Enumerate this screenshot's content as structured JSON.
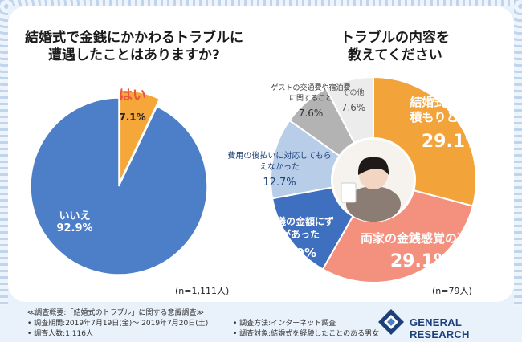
{
  "left": {
    "title_line1": "結婚式で金銭にかかわるトラブルに",
    "title_line2": "遭遇したことはありますか?",
    "n_label": "(n=1,111人)"
  },
  "right": {
    "title_line1": "トラブルの内容を",
    "title_line2": "教えてください",
    "n_label": "(n=79人)"
  },
  "chart_data": [
    {
      "type": "pie",
      "title": "結婚式で金銭にかかわるトラブルに遭遇したことはありますか?",
      "labels": [
        "はい",
        "いいえ"
      ],
      "values": [
        7.1,
        92.9
      ],
      "value_labels": [
        "7.1%",
        "92.9%"
      ],
      "colors": [
        "#f5a73a",
        "#4d7fc8"
      ],
      "n": "(n=1,111人)"
    },
    {
      "type": "pie",
      "style": "donut",
      "title": "トラブルの内容を教えてください",
      "labels": [
        "結婚式費用が見積もりと違った",
        "両家の金銭感覚の違い",
        "ご祝儀の金額にずれがあった",
        "費用の後払いに対応してもらえなかった",
        "ゲストの交通費や宿泊費に関すること",
        "その他"
      ],
      "values": [
        29.1,
        29.1,
        13.9,
        12.7,
        7.6,
        7.6
      ],
      "value_labels": [
        "29.1%",
        "29.1%",
        "13.9%",
        "12.7%",
        "7.6%",
        "7.6%"
      ],
      "colors": [
        "#f2a33a",
        "#f4907e",
        "#3f6fbf",
        "#b8cde8",
        "#b3b3b3",
        "#ececec"
      ],
      "n": "(n=79人)"
    }
  ],
  "footer": {
    "summary": "≪調査概要:「結婚式のトラブル」に関する意識調査≫",
    "period": "• 調査期間:2019年7月19日(金)〜 2019年7月20日(土)",
    "count": "• 調査人数:1,116人",
    "method": "• 調査方法:インターネット調査",
    "target": "• 調査対象:結婚式を経験したことのある男女",
    "logo": "GENERAL RESEARCH"
  },
  "colors": {
    "background": "#e9f1fb",
    "accent_orange": "#f5a73a",
    "accent_blue": "#4d7fc8",
    "accent_salmon": "#f4907e"
  }
}
